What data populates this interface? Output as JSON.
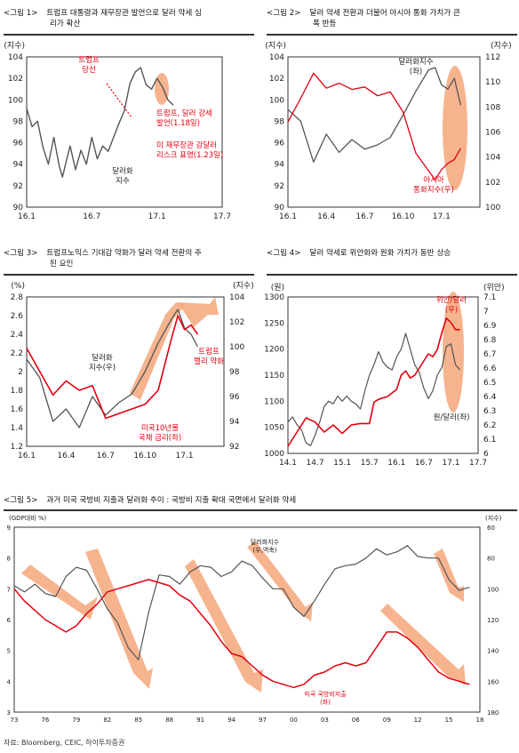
{
  "figures": [
    {
      "num": "<그림 1>",
      "line1": "트럼프 대통령과 재무장관 발언으로 달러 약세 심",
      "line2": "리가 확산"
    },
    {
      "num": "<그림 2>",
      "line1": "달러 약세 전환과 더불어 아시아 통화 가치가 큰",
      "line2": "폭 반등"
    },
    {
      "num": "<그림 3>",
      "line1": "트럼프노믹스 기대감 약화가 달러 약세 전환의 주",
      "line2": "된 요인"
    },
    {
      "num": "<그림 4>",
      "line1": "달러 약세로 위안화와 원화 가치가 동반 상승",
      "line2": ""
    },
    {
      "num": "<그림 5>",
      "line1": "과거 미국 국방비 지출과 달러화 추이 : 국방비 지출 확대 국면에서 달러화 약세",
      "line2": ""
    }
  ],
  "source": "자료: Bloomberg, CEIC, 하이투자증권",
  "colors": {
    "dollar": "#555555",
    "red": "#e3000f",
    "arrow": "#f4a77a"
  },
  "chart_data": [
    {
      "type": "line",
      "ylabel": "(지수)",
      "ylim": [
        90,
        104
      ],
      "yticks": [
        90,
        92,
        94,
        96,
        98,
        100,
        102,
        104
      ],
      "xticks": [
        "16.1",
        "16.7",
        "17.1",
        "17.7"
      ],
      "series": [
        {
          "name": "달러화 지수",
          "x": [
            0,
            0.5,
            1,
            1.5,
            2,
            2.5,
            3,
            3.3,
            3.7,
            4,
            4.5,
            5,
            5.5,
            6,
            6.5,
            7,
            7.5,
            8,
            8.5,
            9,
            9.5,
            10,
            10.5,
            11,
            11.5,
            12,
            12.5,
            13,
            13.5
          ],
          "values": [
            99.2,
            97.5,
            98,
            95.6,
            94,
            96.5,
            93.8,
            92.8,
            94.5,
            95.7,
            93.5,
            95.3,
            94,
            96.5,
            94.5,
            95.7,
            95.2,
            96.5,
            97.8,
            99,
            101.5,
            102.6,
            103,
            101.4,
            101,
            102,
            101.2,
            100,
            99.5
          ]
        }
      ],
      "annotations": [
        "트럼프\n당선",
        "트럼프, 달러 강세\n발언(1.18일)",
        "미 재무장관 강달러\n리스크 표명(1.23일)",
        "달러화\n지수"
      ]
    },
    {
      "type": "line",
      "ylabel_left": "(지수)",
      "ylabel_right": "(지수)",
      "ylim_left": [
        90,
        104
      ],
      "yticks_left": [
        90,
        92,
        94,
        96,
        98,
        100,
        102,
        104
      ],
      "ylim_right": [
        100,
        112
      ],
      "yticks_right": [
        100,
        102,
        104,
        106,
        108,
        110,
        112
      ],
      "xticks": [
        "16.1",
        "16.4",
        "16.7",
        "16.10",
        "17.1"
      ],
      "series": [
        {
          "name": "달러화지수(좌)",
          "x": [
            0,
            1,
            2,
            3,
            4,
            5,
            6,
            7,
            8,
            9,
            10,
            11,
            11.5,
            12,
            12.5,
            13,
            13.5
          ],
          "values": [
            99.1,
            98,
            94.2,
            96.8,
            95.1,
            96.3,
            95.4,
            95.8,
            96.5,
            98.6,
            100.8,
            102.8,
            103,
            101.4,
            101,
            102,
            99.5
          ]
        },
        {
          "name": "아시아 통화지수(우)",
          "x": [
            0,
            1,
            2,
            3,
            4,
            5,
            6,
            7,
            8,
            9,
            10,
            11,
            11.5,
            12,
            12.5,
            13,
            13.5
          ],
          "values": [
            106.8,
            108.7,
            110.7,
            109.5,
            109.9,
            109.4,
            109.6,
            108.9,
            109.2,
            107.6,
            104.3,
            102.9,
            102.2,
            103,
            103.5,
            103.8,
            104.7
          ]
        }
      ],
      "annotations": [
        "달러화지수\n(좌)",
        "아시아\n통화지수(우)"
      ]
    },
    {
      "type": "line",
      "ylabel_left": "(%)",
      "ylabel_right": "(지수)",
      "ylim_left": [
        1.2,
        2.8
      ],
      "yticks_left": [
        1.2,
        1.4,
        1.6,
        1.8,
        2,
        2.2,
        2.4,
        2.6,
        2.8
      ],
      "ylim_right": [
        92,
        104
      ],
      "yticks_right": [
        92,
        94,
        96,
        98,
        100,
        102,
        104
      ],
      "xticks": [
        "16.1",
        "16.4",
        "16.7",
        "16.10",
        "17.1"
      ],
      "series": [
        {
          "name": "달러화 지수(우)",
          "x": [
            0,
            1,
            2,
            3,
            4,
            5,
            6,
            7,
            8,
            9,
            10,
            11,
            11.5,
            12,
            12.5,
            13
          ],
          "values": [
            99,
            97.5,
            94,
            95,
            93.5,
            96,
            94.5,
            95.5,
            96.2,
            98,
            100.3,
            102.2,
            103,
            101.5,
            101,
            100
          ]
        },
        {
          "name": "미국10년물 국채 금리(좌)",
          "x": [
            0,
            1,
            2,
            3,
            4,
            5,
            6,
            7,
            8,
            9,
            10,
            11,
            11.5,
            12,
            12.5,
            13
          ],
          "values": [
            2.25,
            2.0,
            1.75,
            1.9,
            1.8,
            1.85,
            1.5,
            1.55,
            1.6,
            1.65,
            1.8,
            2.35,
            2.6,
            2.45,
            2.5,
            2.4
          ]
        }
      ],
      "annotations": [
        "달러화\n지수(우)",
        "미국10년물\n국채 금리(좌)",
        "트럼프\n랠리 약화"
      ]
    },
    {
      "type": "line",
      "ylabel_left": "(원)",
      "ylabel_right": "(위안)",
      "ylim_left": [
        1000,
        1300
      ],
      "yticks_left": [
        1000,
        1050,
        1100,
        1150,
        1200,
        1250,
        1300
      ],
      "ylim_right": [
        6,
        7.1
      ],
      "yticks_right": [
        6,
        6.1,
        6.2,
        6.3,
        6.4,
        6.5,
        6.6,
        6.7,
        6.8,
        6.9,
        7,
        7.1
      ],
      "xticks": [
        "14.1",
        "14.7",
        "15.1",
        "15.7",
        "16.1",
        "16.7",
        "17.1",
        "17.7"
      ],
      "series": [
        {
          "name": "원/달러(좌)",
          "x": [
            0,
            1,
            2,
            3,
            4,
            5,
            6,
            7,
            8,
            9,
            10,
            11,
            12,
            13,
            14,
            15,
            16,
            17,
            18,
            19,
            20,
            21,
            22,
            23,
            24,
            25,
            26,
            27,
            28,
            29,
            30,
            31,
            32,
            33,
            34,
            35,
            36,
            37,
            38
          ],
          "values": [
            1060,
            1070,
            1055,
            1045,
            1020,
            1015,
            1035,
            1060,
            1090,
            1100,
            1095,
            1110,
            1100,
            1110,
            1100,
            1095,
            1085,
            1120,
            1150,
            1170,
            1195,
            1175,
            1165,
            1160,
            1185,
            1200,
            1230,
            1200,
            1170,
            1155,
            1125,
            1105,
            1120,
            1150,
            1165,
            1205,
            1210,
            1170,
            1160
          ]
        },
        {
          "name": "위안/달러(우)",
          "x": [
            0,
            2,
            4,
            6,
            8,
            10,
            12,
            14,
            16,
            18,
            19,
            20,
            22,
            24,
            25,
            26,
            27,
            28,
            29,
            30,
            31,
            32,
            33,
            34,
            35,
            36,
            37,
            38
          ],
          "values": [
            6.05,
            6.15,
            6.25,
            6.22,
            6.15,
            6.2,
            6.14,
            6.2,
            6.21,
            6.21,
            6.36,
            6.38,
            6.4,
            6.45,
            6.55,
            6.58,
            6.53,
            6.55,
            6.6,
            6.65,
            6.7,
            6.68,
            6.73,
            6.85,
            6.95,
            6.92,
            6.87,
            6.87
          ]
        }
      ],
      "annotations": [
        "위안/달러\n(우)",
        "원/달러(좌)"
      ]
    },
    {
      "type": "line",
      "ylabel_left": "(GDP대비 %)",
      "ylabel_right": "(지수)",
      "ylim_left": [
        3,
        9
      ],
      "yticks_left": [
        3,
        4,
        5,
        6,
        7,
        8,
        9
      ],
      "ylim_right": [
        180,
        60
      ],
      "yticks_right": [
        60,
        80,
        100,
        120,
        140,
        160,
        180
      ],
      "xticks": [
        "73",
        "76",
        "79",
        "82",
        "85",
        "88",
        "91",
        "94",
        "97",
        "00",
        "03",
        "06",
        "09",
        "12",
        "15",
        "18"
      ],
      "series": [
        {
          "name": "미국 국방비지출(좌)",
          "x": [
            73,
            74,
            75,
            76,
            77,
            78,
            79,
            80,
            81,
            82,
            83,
            84,
            85,
            86,
            87,
            88,
            89,
            90,
            91,
            92,
            93,
            94,
            95,
            96,
            97,
            98,
            99,
            100,
            101,
            102,
            103,
            104,
            105,
            106,
            107,
            108,
            109,
            110,
            111,
            112,
            113,
            114,
            115,
            116,
            117
          ],
          "values": [
            7.0,
            6.6,
            6.3,
            6.0,
            5.8,
            5.6,
            5.8,
            6.2,
            6.5,
            6.9,
            7.0,
            7.1,
            7.2,
            7.3,
            7.2,
            7.1,
            6.8,
            6.6,
            6.2,
            5.8,
            5.3,
            4.9,
            4.8,
            4.5,
            4.2,
            4.0,
            3.9,
            3.8,
            3.9,
            4.2,
            4.3,
            4.5,
            4.6,
            4.5,
            4.6,
            5.1,
            5.6,
            5.6,
            5.4,
            5.1,
            4.7,
            4.3,
            4.1,
            4.0,
            3.9
          ]
        },
        {
          "name": "달러화지수(우,역축)",
          "x": [
            73,
            74,
            75,
            76,
            77,
            78,
            79,
            80,
            81,
            82,
            83,
            84,
            85,
            86,
            87,
            88,
            89,
            90,
            91,
            92,
            93,
            94,
            95,
            96,
            97,
            98,
            99,
            100,
            101,
            102,
            103,
            104,
            105,
            106,
            107,
            108,
            109,
            110,
            111,
            112,
            113,
            114,
            115,
            116,
            117
          ],
          "values": [
            98,
            102,
            97,
            103,
            105,
            92,
            86,
            88,
            100,
            113,
            122,
            138,
            146,
            115,
            91,
            92,
            97,
            89,
            85,
            86,
            92,
            89,
            82,
            85,
            93,
            100,
            100,
            112,
            118,
            108,
            97,
            87,
            85,
            84,
            80,
            74,
            78,
            76,
            72,
            79,
            80,
            80,
            94,
            101,
            99
          ]
        }
      ],
      "annotations": [
        "달러화지수\n(우,역축)",
        "미국 국방비지출\n(좌)"
      ]
    }
  ]
}
